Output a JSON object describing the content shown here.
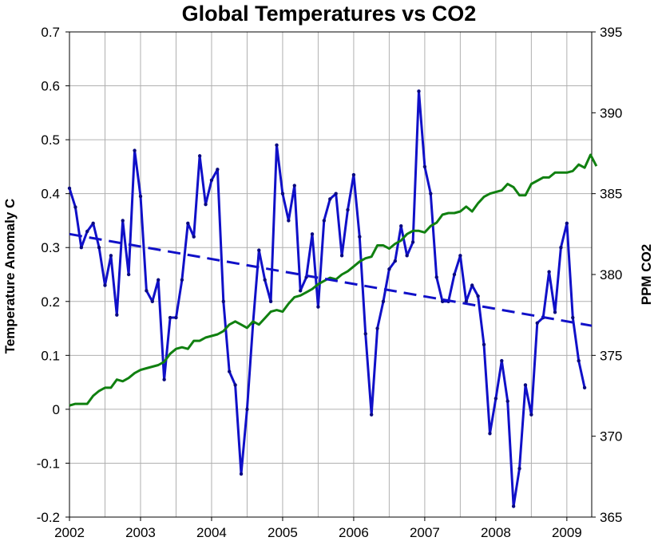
{
  "chart_data": {
    "type": "line",
    "title": "Global Temperatures vs CO2",
    "ylabel_left": "Temperature Anomaly C",
    "ylabel_right": "PPM CO2",
    "xlim": [
      2002,
      2009.35
    ],
    "ylim_left": [
      -0.2,
      0.7
    ],
    "ylim_right": [
      365,
      395
    ],
    "x_ticks": [
      "2002",
      "2003",
      "2004",
      "2005",
      "2006",
      "2007",
      "2008",
      "2009"
    ],
    "y_left_ticks": [
      "0.7",
      "0.6",
      "0.5",
      "0.4",
      "0.3",
      "0.2",
      "0.1",
      "0",
      "-0.1",
      "-0.2"
    ],
    "y_right_ticks": [
      "395",
      "390",
      "385",
      "380",
      "375",
      "370",
      "365"
    ],
    "grid": true,
    "series": [
      {
        "name": "",
        "axis": "left",
        "color": "#1010c8",
        "style": "solid-with-markers",
        "x_start": 2002.0,
        "x_step": 0.0833333,
        "values": [
          0.41,
          0.375,
          0.3,
          0.33,
          0.345,
          0.3,
          0.23,
          0.285,
          0.175,
          0.35,
          0.25,
          0.48,
          0.395,
          0.22,
          0.2,
          0.24,
          0.055,
          0.17,
          0.17,
          0.24,
          0.345,
          0.32,
          0.47,
          0.38,
          0.425,
          0.445,
          0.2,
          0.07,
          0.045,
          -0.12,
          0.0,
          0.16,
          0.295,
          0.24,
          0.2,
          0.49,
          0.4,
          0.35,
          0.415,
          0.22,
          0.245,
          0.325,
          0.19,
          0.35,
          0.39,
          0.4,
          0.285,
          0.37,
          0.435,
          0.32,
          0.14,
          -0.01,
          0.15,
          0.2,
          0.26,
          0.275,
          0.34,
          0.285,
          0.31,
          0.59,
          0.45,
          0.4,
          0.245,
          0.2,
          0.2,
          0.25,
          0.285,
          0.2,
          0.23,
          0.21,
          0.12,
          -0.045,
          0.02,
          0.09,
          0.015,
          -0.18,
          -0.11,
          0.045,
          -0.01,
          0.16,
          0.17,
          0.255,
          0.18,
          0.3,
          0.345,
          0.17,
          0.09,
          0.04
        ]
      },
      {
        "name": "",
        "axis": "right",
        "color": "#108010",
        "style": "solid",
        "x_start": 2002.0,
        "x_step": 0.0833333,
        "values": [
          371.9,
          372.0,
          372.0,
          372.0,
          372.5,
          372.8,
          373.0,
          373.0,
          373.5,
          373.4,
          373.6,
          373.9,
          374.1,
          374.2,
          374.3,
          374.4,
          374.6,
          375.1,
          375.4,
          375.5,
          375.4,
          375.9,
          375.9,
          376.1,
          376.2,
          376.3,
          376.5,
          376.9,
          377.1,
          376.9,
          376.7,
          377.1,
          376.9,
          377.3,
          377.7,
          377.8,
          377.7,
          378.2,
          378.6,
          378.7,
          378.9,
          379.1,
          379.4,
          379.6,
          379.8,
          379.7,
          380.0,
          380.2,
          380.5,
          380.8,
          381.0,
          381.1,
          381.8,
          381.8,
          381.6,
          381.9,
          382.1,
          382.5,
          382.7,
          382.7,
          382.6,
          383.0,
          383.2,
          383.7,
          383.8,
          383.8,
          383.9,
          384.2,
          383.9,
          384.4,
          384.8,
          385.0,
          385.1,
          385.2,
          385.6,
          385.4,
          384.9,
          384.9,
          385.6,
          385.8,
          386.0,
          386.0,
          386.3,
          386.3,
          386.3,
          386.4,
          386.8,
          386.6,
          387.4,
          386.7
        ]
      },
      {
        "name": "",
        "axis": "left",
        "color": "#1010c8",
        "style": "dashed-trend",
        "x": [
          2002.0,
          2009.35
        ],
        "values": [
          0.325,
          0.155
        ]
      }
    ]
  }
}
